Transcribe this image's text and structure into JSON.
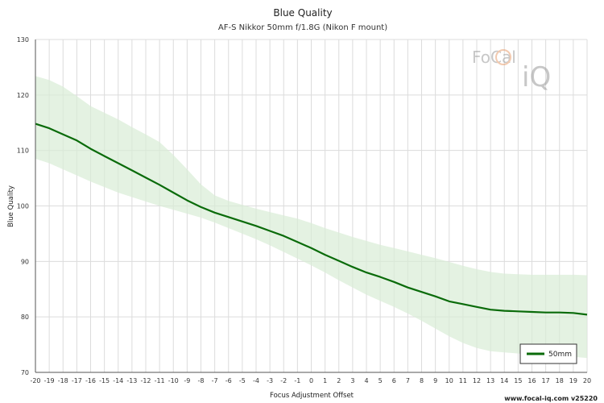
{
  "chart_data": {
    "type": "line",
    "title": "Blue Quality",
    "subtitle": "AF-S Nikkor 50mm f/1.8G (Nikon F mount)",
    "xlabel": "Focus Adjustment Offset",
    "ylabel": "Blue Quality",
    "xlim": [
      -20,
      20
    ],
    "ylim": [
      70,
      130
    ],
    "x_ticks": [
      -20,
      -19,
      -18,
      -17,
      -16,
      -15,
      -14,
      -13,
      -12,
      -11,
      -10,
      -9,
      -8,
      -7,
      -6,
      -5,
      -4,
      -3,
      -2,
      -1,
      0,
      1,
      2,
      3,
      4,
      5,
      6,
      7,
      8,
      9,
      10,
      11,
      12,
      13,
      14,
      15,
      16,
      17,
      18,
      19,
      20
    ],
    "y_ticks": [
      70,
      80,
      90,
      100,
      110,
      120,
      130
    ],
    "grid": true,
    "legend_position": "bottom-right",
    "series": [
      {
        "name": "50mm",
        "color": "#0a6b0a",
        "x": [
          -20,
          -19,
          -18,
          -17,
          -16,
          -15,
          -14,
          -13,
          -12,
          -11,
          -10,
          -9,
          -8,
          -7,
          -6,
          -5,
          -4,
          -3,
          -2,
          -1,
          0,
          1,
          2,
          3,
          4,
          5,
          6,
          7,
          8,
          9,
          10,
          11,
          12,
          13,
          14,
          15,
          16,
          17,
          18,
          19,
          20
        ],
        "y": [
          114.8,
          114.0,
          112.9,
          111.8,
          110.3,
          109.0,
          107.7,
          106.4,
          105.1,
          103.8,
          102.4,
          101.0,
          99.8,
          98.8,
          98.0,
          97.2,
          96.4,
          95.5,
          94.6,
          93.5,
          92.4,
          91.2,
          90.1,
          89.0,
          88.0,
          87.2,
          86.3,
          85.3,
          84.5,
          83.7,
          82.8,
          82.3,
          81.8,
          81.3,
          81.1,
          81.0,
          80.9,
          80.8,
          80.8,
          80.7,
          80.4
        ],
        "upper": [
          123.4,
          122.7,
          121.5,
          119.8,
          118.0,
          116.8,
          115.6,
          114.2,
          112.9,
          111.5,
          109.2,
          106.6,
          103.9,
          101.9,
          100.9,
          100.2,
          99.5,
          98.9,
          98.3,
          97.7,
          96.9,
          96.0,
          95.2,
          94.4,
          93.7,
          93.0,
          92.4,
          91.8,
          91.2,
          90.6,
          89.9,
          89.2,
          88.6,
          88.1,
          87.8,
          87.7,
          87.6,
          87.6,
          87.6,
          87.6,
          87.5
        ],
        "lower": [
          108.5,
          107.7,
          106.6,
          105.5,
          104.4,
          103.4,
          102.4,
          101.6,
          100.8,
          100.0,
          99.3,
          98.6,
          97.9,
          97.0,
          96.0,
          95.0,
          94.0,
          92.9,
          91.7,
          90.5,
          89.3,
          88.0,
          86.6,
          85.3,
          84.0,
          82.9,
          81.8,
          80.6,
          79.3,
          77.9,
          76.5,
          75.3,
          74.4,
          73.8,
          73.6,
          73.4,
          73.3,
          73.2,
          73.0,
          72.8,
          72.6
        ]
      }
    ]
  },
  "watermark": {
    "brand_top": "FoCal",
    "brand_bottom": "iQ"
  },
  "footer": {
    "text": "www.focal-iq.com  v25220"
  }
}
